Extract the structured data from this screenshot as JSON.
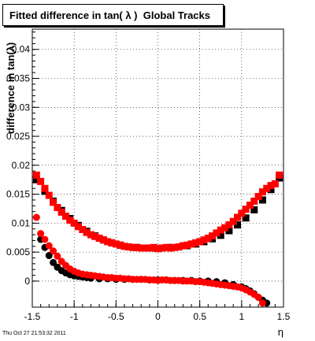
{
  "chart_data": {
    "type": "scatter",
    "title": "Fitted difference in tan( λ )  Global Tracks",
    "xlabel": "η",
    "ylabel": "difference in tan(λ)",
    "xlim": [
      -1.5,
      1.5
    ],
    "ylim": [
      -0.0045,
      0.0435
    ],
    "grid": true,
    "x_ticks": [
      "-1.5",
      "-1",
      "-0.5",
      "0",
      "0.5",
      "1",
      "1.5"
    ],
    "x_tick_values": [
      -1.5,
      -1,
      -0.5,
      0,
      0.5,
      1,
      1.5
    ],
    "y_ticks": [
      "0",
      "0.005",
      "0.01",
      "0.015",
      "0.02",
      "0.025",
      "0.03",
      "0.035",
      "0.04"
    ],
    "y_tick_values": [
      0,
      0.005,
      0.01,
      0.015,
      0.02,
      0.025,
      0.03,
      0.035,
      0.04
    ],
    "series": [
      {
        "marker": "square",
        "color": "#000000",
        "x": [
          -1.45,
          -1.35,
          -1.25,
          -1.15,
          -1.05,
          -0.95,
          -0.85,
          -0.75,
          -0.65,
          -0.55,
          -0.45,
          -0.35,
          -0.25,
          -0.15,
          -0.05,
          0.05,
          0.15,
          0.25,
          0.35,
          0.45,
          0.55,
          0.65,
          0.75,
          0.85,
          0.95,
          1.05,
          1.15,
          1.25,
          1.35,
          1.45
        ],
        "y": [
          0.0175,
          0.0155,
          0.0138,
          0.0122,
          0.0108,
          0.0096,
          0.0086,
          0.0078,
          0.0071,
          0.0066,
          0.0062,
          0.0059,
          0.0058,
          0.0057,
          0.0057,
          0.0057,
          0.0058,
          0.0059,
          0.0061,
          0.0064,
          0.0068,
          0.0073,
          0.0079,
          0.0087,
          0.0097,
          0.0109,
          0.0123,
          0.014,
          0.0158,
          0.0178
        ]
      },
      {
        "marker": "square",
        "color": "#ff0000",
        "x": [
          -1.45,
          -1.4,
          -1.35,
          -1.3,
          -1.25,
          -1.2,
          -1.15,
          -1.1,
          -1.05,
          -1.0,
          -0.95,
          -0.9,
          -0.85,
          -0.8,
          -0.75,
          -0.7,
          -0.65,
          -0.6,
          -0.55,
          -0.5,
          -0.45,
          -0.4,
          -0.35,
          -0.3,
          -0.25,
          -0.2,
          -0.15,
          -0.1,
          -0.05,
          0.0,
          0.05,
          0.1,
          0.15,
          0.2,
          0.25,
          0.3,
          0.35,
          0.4,
          0.45,
          0.5,
          0.55,
          0.6,
          0.65,
          0.7,
          0.75,
          0.8,
          0.85,
          0.9,
          0.95,
          1.0,
          1.05,
          1.1,
          1.15,
          1.2,
          1.25,
          1.3,
          1.35,
          1.4,
          1.45
        ],
        "y": [
          0.0183,
          0.0172,
          0.016,
          0.0148,
          0.0136,
          0.0127,
          0.0119,
          0.0112,
          0.0105,
          0.01,
          0.0094,
          0.0089,
          0.0084,
          0.008,
          0.0077,
          0.0074,
          0.0071,
          0.0068,
          0.0066,
          0.0064,
          0.0062,
          0.006,
          0.0059,
          0.0058,
          0.0058,
          0.0057,
          0.0057,
          0.0057,
          0.0058,
          0.0056,
          0.0057,
          0.0058,
          0.0057,
          0.0058,
          0.0059,
          0.0061,
          0.0062,
          0.0064,
          0.0066,
          0.0068,
          0.0071,
          0.0074,
          0.0078,
          0.0083,
          0.0088,
          0.0092,
          0.0097,
          0.0103,
          0.011,
          0.0117,
          0.0124,
          0.0131,
          0.0138,
          0.0146,
          0.0154,
          0.016,
          0.0165,
          0.0168,
          0.0183
        ]
      },
      {
        "marker": "circle",
        "color": "#000000",
        "x": [
          -1.4,
          -1.35,
          -1.3,
          -1.25,
          -1.2,
          -1.15,
          -1.1,
          -1.05,
          -1.0,
          -0.95,
          -0.9,
          -0.85,
          -0.8,
          -0.7,
          -0.6,
          -0.5,
          -0.4,
          -0.3,
          -0.2,
          -0.1,
          0.0,
          0.1,
          0.2,
          0.3,
          0.4,
          0.5,
          0.6,
          0.7,
          0.8,
          0.9,
          1.0,
          1.05,
          1.1,
          1.15,
          1.2,
          1.25,
          1.3
        ],
        "y": [
          0.0072,
          0.0058,
          0.0044,
          0.0032,
          0.0024,
          0.0018,
          0.0014,
          0.0011,
          0.0009,
          0.0008,
          0.0007,
          0.0006,
          0.0005,
          0.0004,
          0.0004,
          0.0003,
          0.0003,
          0.0003,
          0.0003,
          0.0002,
          0.0002,
          0.0002,
          0.0001,
          0.0001,
          0.0001,
          0.0,
          0.0,
          -0.0001,
          -0.0003,
          -0.0006,
          -0.001,
          -0.0013,
          -0.0017,
          -0.0022,
          -0.0028,
          -0.0033,
          -0.0038
        ]
      },
      {
        "marker": "circle",
        "color": "#ff0000",
        "x": [
          -1.45,
          -1.4,
          -1.35,
          -1.3,
          -1.25,
          -1.2,
          -1.15,
          -1.1,
          -1.05,
          -1.0,
          -0.95,
          -0.9,
          -0.85,
          -0.8,
          -0.75,
          -0.7,
          -0.65,
          -0.6,
          -0.55,
          -0.5,
          -0.45,
          -0.4,
          -0.35,
          -0.3,
          -0.25,
          -0.2,
          -0.15,
          -0.1,
          -0.05,
          0.0,
          0.05,
          0.1,
          0.15,
          0.2,
          0.25,
          0.3,
          0.35,
          0.4,
          0.45,
          0.5,
          0.55,
          0.6,
          0.65,
          0.7,
          0.75,
          0.8,
          0.85,
          0.9,
          0.95,
          1.0,
          1.05,
          1.1,
          1.15,
          1.2,
          1.25
        ],
        "y": [
          0.011,
          0.0082,
          0.0072,
          0.0061,
          0.0052,
          0.0043,
          0.0034,
          0.0027,
          0.0021,
          0.0017,
          0.0014,
          0.0012,
          0.0011,
          0.001,
          0.0009,
          0.0008,
          0.0007,
          0.0006,
          0.0006,
          0.0005,
          0.0005,
          0.0004,
          0.0004,
          0.0003,
          0.0003,
          0.0003,
          0.0003,
          0.0002,
          0.0002,
          0.0001,
          0.0002,
          0.0002,
          0.0001,
          0.0001,
          0.0001,
          0.0,
          0.0,
          0.0,
          -0.0001,
          -0.0001,
          -0.0002,
          -0.0003,
          -0.0004,
          -0.0005,
          -0.0006,
          -0.0007,
          -0.0008,
          -0.0009,
          -0.001,
          -0.0012,
          -0.0015,
          -0.0019,
          -0.0023,
          -0.0028,
          -0.0038
        ]
      }
    ]
  },
  "footer": {
    "timestamp": "Thu Oct 27 21:53:32 2011"
  }
}
